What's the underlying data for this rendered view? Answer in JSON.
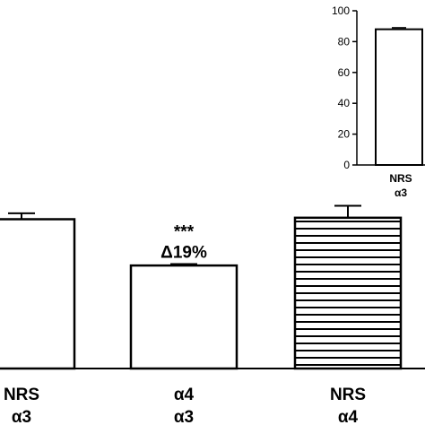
{
  "chart_data": [
    {
      "type": "bar",
      "categories": [
        {
          "line1": "NRS",
          "line2": "α3"
        },
        {
          "line1": "α4",
          "line2": "α3"
        },
        {
          "line1": "NRS",
          "line2": "α4"
        }
      ],
      "values": [
        100,
        69,
        101
      ],
      "errors": [
        4,
        1,
        8
      ],
      "patterns": [
        "none",
        "none",
        "horizontal-lines"
      ],
      "annotations": [
        {
          "bar": 1,
          "line1": "***",
          "line2": "Δ19%"
        }
      ],
      "ylim": [
        0,
        115
      ],
      "colors": {
        "fill": "#ffffff",
        "stroke": "#000000",
        "pattern": "#000000"
      }
    },
    {
      "type": "bar",
      "categories": [
        {
          "line1": "NRS",
          "line2": "α3"
        }
      ],
      "values": [
        88
      ],
      "errors": [
        1
      ],
      "yticks": [
        0,
        20,
        40,
        60,
        80,
        100
      ],
      "ylim": [
        0,
        100
      ]
    }
  ]
}
